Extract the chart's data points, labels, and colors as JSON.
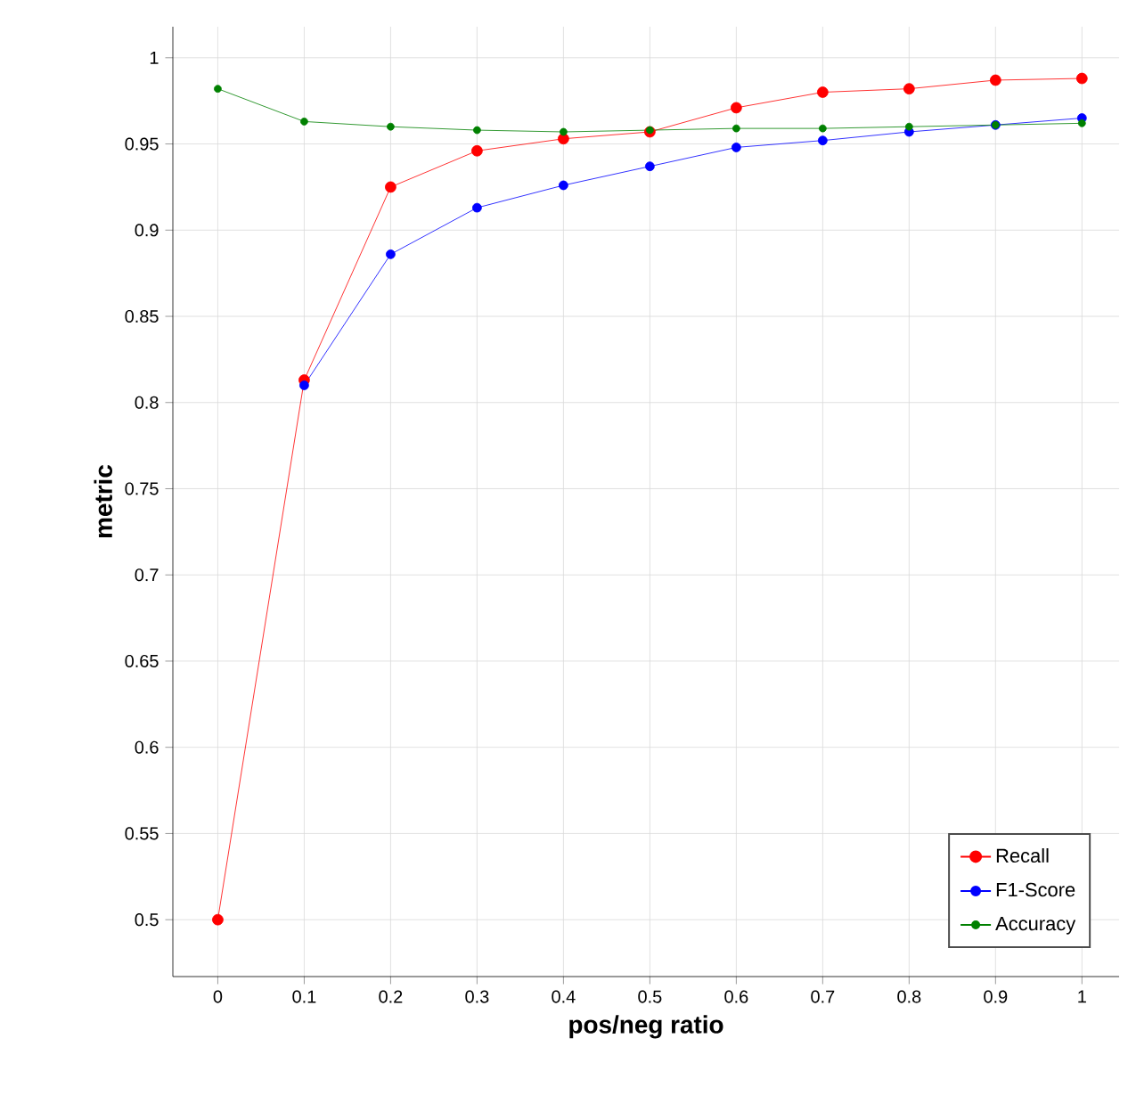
{
  "chart_data": {
    "type": "line",
    "xlabel": "pos/neg ratio",
    "ylabel": "metric",
    "x": [
      0,
      0.1,
      0.2,
      0.3,
      0.4,
      0.5,
      0.6,
      0.7,
      0.8,
      0.9,
      1
    ],
    "series": [
      {
        "name": "Recall",
        "color": "#ff0000",
        "values": [
          0.5,
          0.813,
          0.925,
          0.946,
          0.953,
          0.957,
          0.971,
          0.98,
          0.982,
          0.987,
          0.988
        ]
      },
      {
        "name": "F1-Score",
        "color": "#0000ff",
        "values": [
          null,
          0.81,
          0.886,
          0.913,
          0.926,
          0.937,
          0.948,
          0.952,
          0.957,
          0.961,
          0.965
        ]
      },
      {
        "name": "Accuracy",
        "color": "#008000",
        "values": [
          0.982,
          0.963,
          0.96,
          0.958,
          0.957,
          0.958,
          0.959,
          0.959,
          0.96,
          0.961,
          0.962
        ]
      }
    ],
    "xlim": [
      -0.052,
      1.043
    ],
    "ylim": [
      0.467,
      1.018
    ],
    "xticks": [
      0,
      0.1,
      0.2,
      0.3,
      0.4,
      0.5,
      0.6,
      0.7,
      0.8,
      0.9,
      1
    ],
    "yticks": [
      0.5,
      0.55,
      0.6,
      0.65,
      0.7,
      0.75,
      0.8,
      0.85,
      0.9,
      0.95,
      1
    ],
    "grid": true,
    "legend": "bottom right",
    "marker": "circle",
    "line_style": "solid"
  }
}
